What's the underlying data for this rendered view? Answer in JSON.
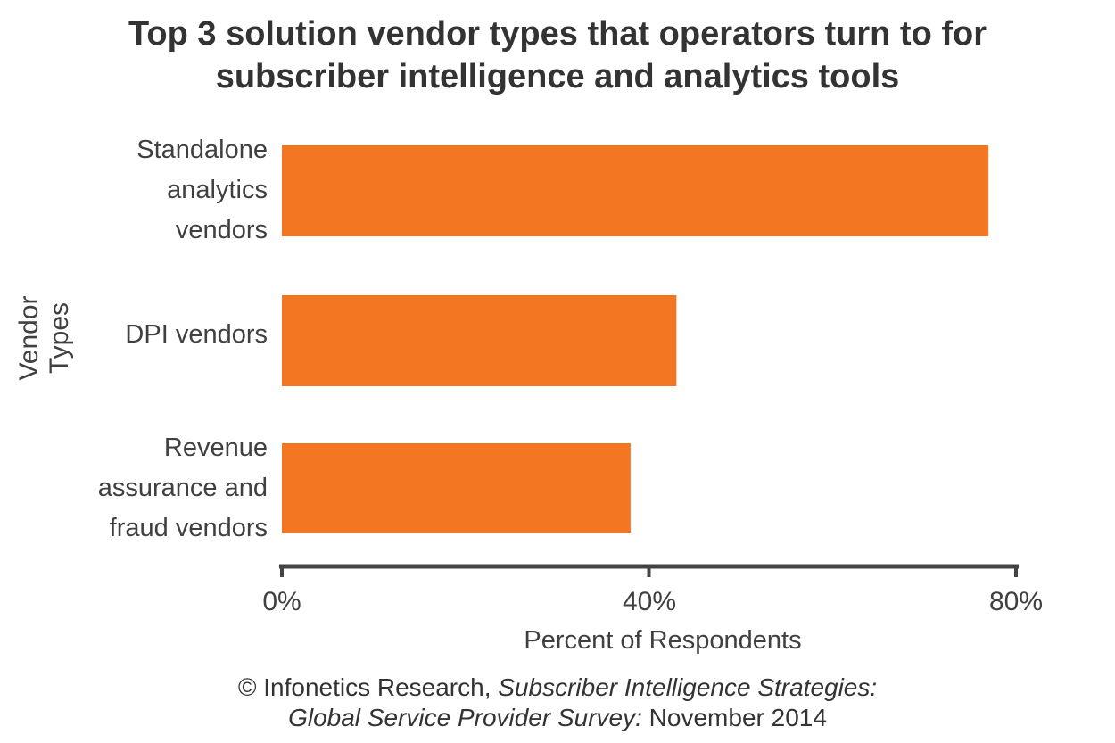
{
  "chart_data": {
    "type": "bar",
    "orientation": "horizontal",
    "title_lines": [
      "Top 3 solution vendor types that operators turn to for",
      "subscriber intelligence and analytics tools"
    ],
    "categories": [
      "Standalone analytics vendors",
      "DPI vendors",
      "Revenue assurance and fraud vendors"
    ],
    "category_lines": [
      [
        "Standalone",
        "analytics",
        "vendors"
      ],
      [
        "DPI vendors"
      ],
      [
        "Revenue",
        "assurance and",
        "fraud vendors"
      ]
    ],
    "values": [
      77,
      43,
      38
    ],
    "xlabel": "Percent of Respondents",
    "ylabel": "Vendor Types",
    "xlim": [
      0,
      80
    ],
    "xticks": [
      0,
      40,
      80
    ],
    "xtick_labels": [
      "0%",
      "40%",
      "80%"
    ],
    "grid": false,
    "bar_color": "#f37723",
    "axis_color": "#444444"
  },
  "source": {
    "prefix": "© Infonetics Research, ",
    "italic1": "Subscriber Intelligence Strategies:",
    "italic2": "Global Service Provider Survey:",
    "suffix": " November 2014"
  }
}
